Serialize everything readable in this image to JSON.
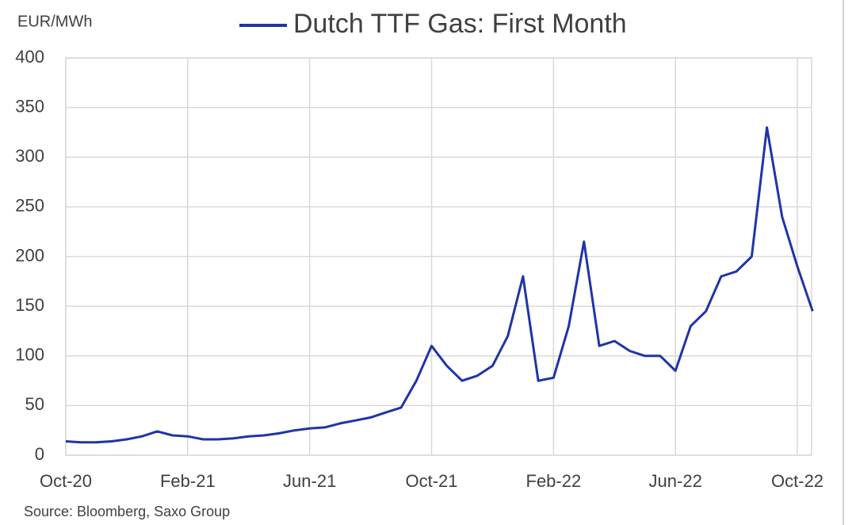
{
  "chart_data": {
    "type": "line",
    "y_label": "EUR/MWh",
    "source": "Source: Bloomberg, Saxo Group",
    "categories": [
      "Oct-20",
      null,
      null,
      null,
      null,
      null,
      null,
      null,
      "Feb-21",
      null,
      null,
      null,
      null,
      null,
      null,
      null,
      "Jun-21",
      null,
      null,
      null,
      null,
      null,
      null,
      null,
      "Oct-21",
      null,
      null,
      null,
      null,
      null,
      null,
      null,
      "Feb-22",
      null,
      null,
      null,
      null,
      null,
      null,
      null,
      "Jun-22",
      null,
      null,
      null,
      null,
      null,
      null,
      null,
      "Oct-22",
      null
    ],
    "series": [
      {
        "name": "Dutch TTF Gas: First Month",
        "color": "#1f35a5",
        "values": [
          14,
          13,
          13,
          14,
          16,
          19,
          24,
          20,
          19,
          16,
          16,
          17,
          19,
          20,
          22,
          25,
          27,
          28,
          32,
          35,
          38,
          43,
          48,
          75,
          110,
          90,
          75,
          80,
          90,
          120,
          180,
          75,
          78,
          130,
          215,
          110,
          115,
          105,
          100,
          100,
          85,
          130,
          145,
          180,
          185,
          200,
          330,
          240,
          190,
          145
        ]
      }
    ],
    "ylim": [
      0,
      400
    ],
    "yticks": [
      0,
      50,
      100,
      150,
      200,
      250,
      300,
      350,
      400
    ],
    "grid": true
  }
}
